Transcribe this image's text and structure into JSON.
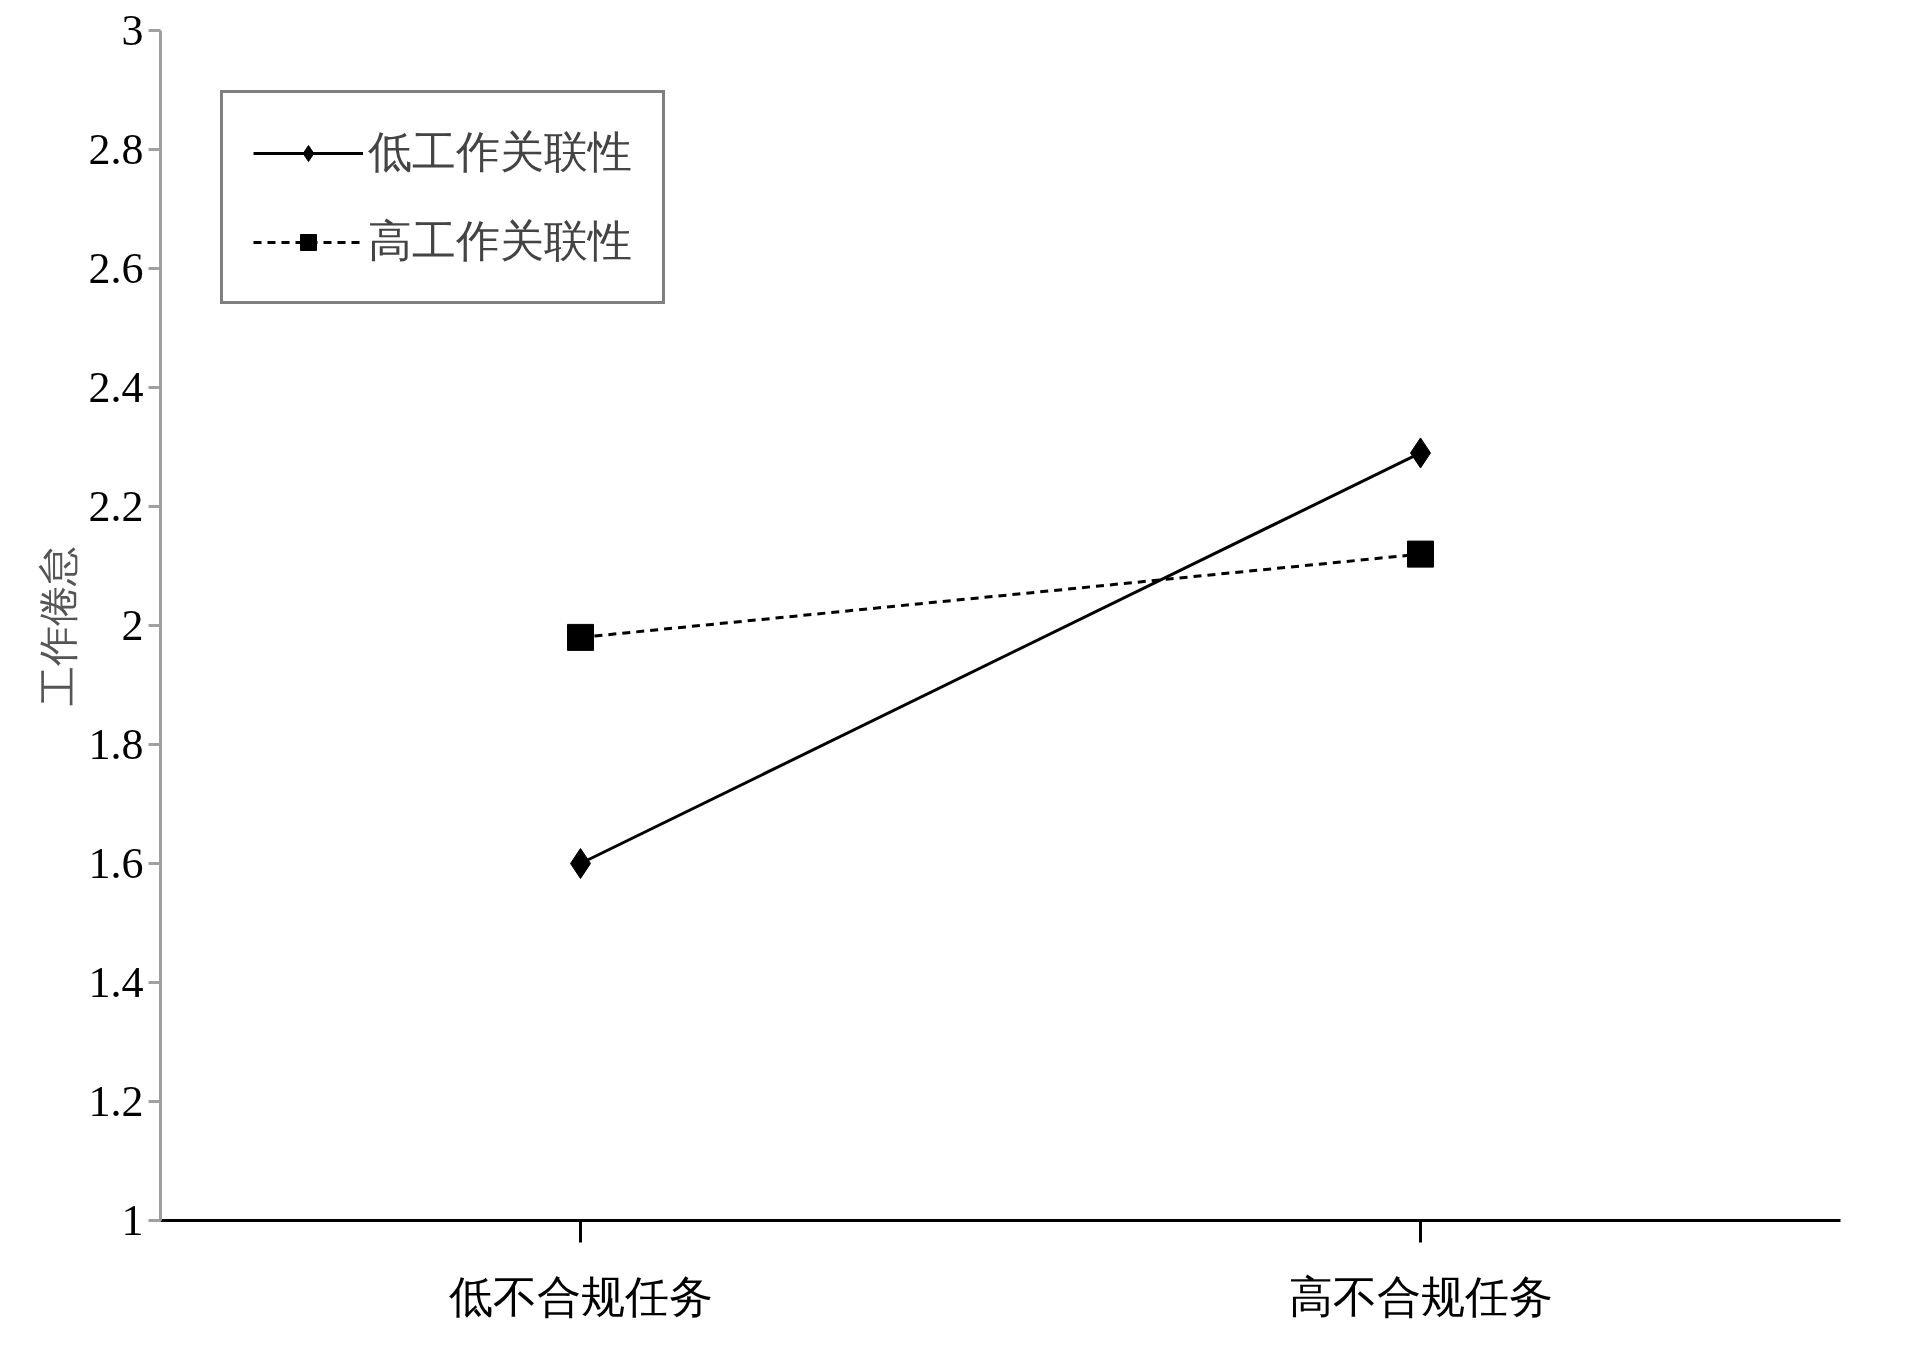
{
  "chart_data": {
    "type": "line",
    "ylabel": "工作倦怠",
    "categories": [
      "低不合规任务",
      "高不合规任务"
    ],
    "ylim": [
      1,
      3
    ],
    "yticks": [
      1,
      1.2,
      1.4,
      1.6,
      1.8,
      2,
      2.2,
      2.4,
      2.6,
      2.8,
      3
    ],
    "grid": false,
    "legend": "top left",
    "series": [
      {
        "name": "低工作关联性",
        "color": "#000000",
        "values": [
          1.6,
          2.29
        ],
        "marker": "diamond",
        "line_style": "solid"
      },
      {
        "name": "高工作关联性",
        "color": "#000000",
        "values": [
          1.98,
          2.12
        ],
        "marker": "square",
        "line_style": "dashed"
      }
    ]
  }
}
